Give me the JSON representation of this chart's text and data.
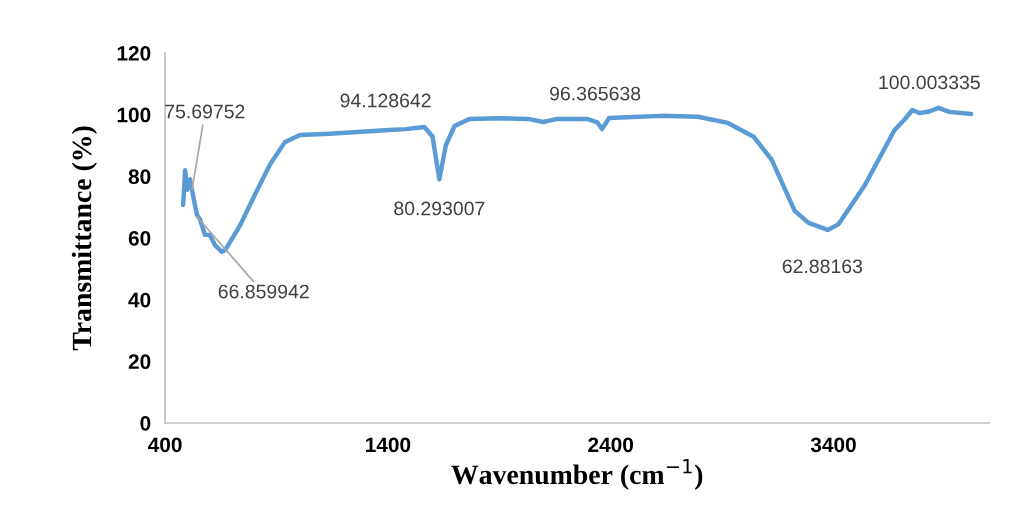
{
  "chart_data": {
    "type": "line",
    "xlabel": "Wavenumber (cm$^{−1}$)",
    "ylabel": "Transmittance (%)",
    "x": [
      481,
      490,
      499,
      512,
      525,
      543,
      557,
      579,
      601,
      624,
      655,
      669,
      736,
      803,
      870,
      937,
      1005,
      1139,
      1300,
      1406,
      1480,
      1564,
      1600,
      1631,
      1660,
      1699,
      1766,
      1900,
      2030,
      2097,
      2160,
      2294,
      2340,
      2361,
      2393,
      2500,
      2626,
      2791,
      2926,
      3042,
      3123,
      3226,
      3288,
      3374,
      3423,
      3539,
      3674,
      3720,
      3754,
      3786,
      3830,
      3871,
      3920,
      4018
    ],
    "series": [
      {
        "color": "#5b9bd5",
        "values": [
          70.7,
          82,
          75.6,
          79,
          74,
          67.5,
          66,
          61,
          61,
          57.7,
          55.5,
          56,
          64,
          74,
          83.7,
          91,
          93.4,
          93.8,
          94.5,
          95,
          95.3,
          96,
          93,
          79,
          90,
          96.3,
          98.6,
          98.8,
          98.6,
          97.6,
          98.6,
          98.6,
          97.5,
          95.3,
          98.9,
          99.2,
          99.6,
          99.3,
          97.3,
          92.8,
          85.3,
          68.8,
          64.9,
          62.6,
          64.5,
          76.9,
          95,
          98.5,
          101.5,
          100.5,
          101,
          102.2,
          100.9,
          100.2
        ]
      }
    ],
    "xlim": [
      400,
      4100
    ],
    "xticks": [
      400,
      1400,
      2400,
      3400
    ],
    "ylim": [
      0,
      120
    ],
    "yticks": [
      0,
      20,
      40,
      60,
      80,
      100,
      120
    ],
    "grid": false,
    "legend": false,
    "marker": "none",
    "line_style": "solid",
    "annotations": [
      {
        "text": "75.69752",
        "x": 521,
        "y": 75.69752
      },
      {
        "text": "66.859942",
        "x": 543,
        "y": 66.859942
      },
      {
        "text": "94.128642",
        "x": 1452,
        "y": 94.128642
      },
      {
        "text": "80.293007",
        "x": 1631,
        "y": 80.293007
      },
      {
        "text": "96.365638",
        "x": 2330,
        "y": 96.365638
      },
      {
        "text": "62.88163",
        "x": 3350,
        "y": 62.88163
      },
      {
        "text": "100.003335",
        "x": 3830,
        "y": 100.003335
      }
    ]
  }
}
